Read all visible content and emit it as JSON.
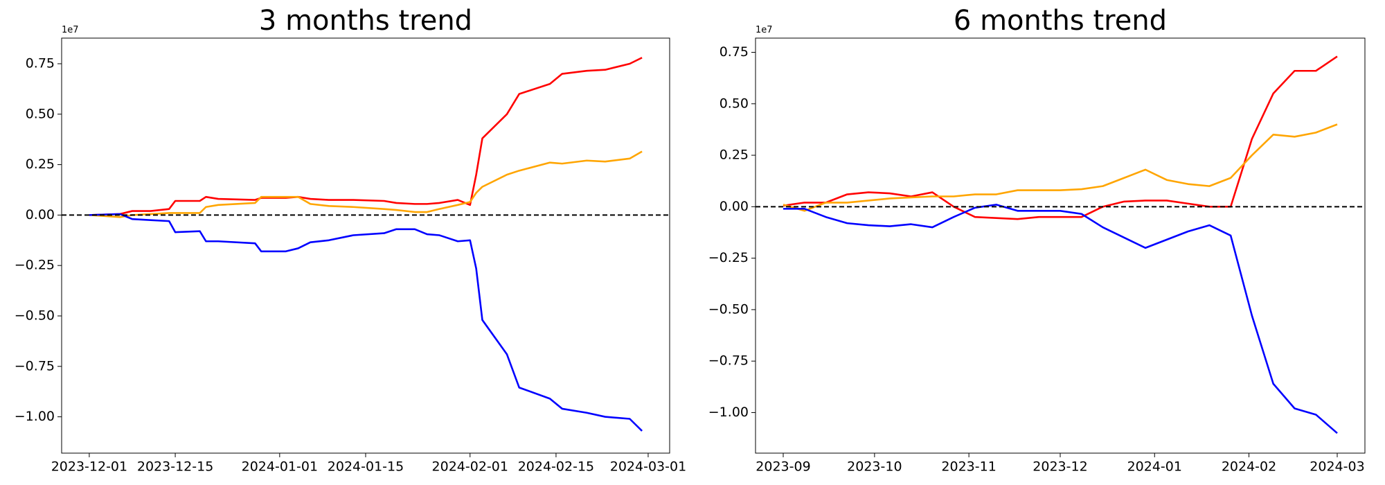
{
  "chart_data": [
    {
      "type": "line",
      "title": "3 months trend",
      "y_offset_label": "1e7",
      "x": [
        "2023-12-01",
        "2023-12-06",
        "2023-12-08",
        "2023-12-11",
        "2023-12-14",
        "2023-12-15",
        "2023-12-19",
        "2023-12-20",
        "2023-12-22",
        "2023-12-28",
        "2023-12-29",
        "2024-01-02",
        "2024-01-04",
        "2024-01-06",
        "2024-01-09",
        "2024-01-13",
        "2024-01-18",
        "2024-01-20",
        "2024-01-23",
        "2024-01-25",
        "2024-01-27",
        "2024-01-30",
        "2024-02-01",
        "2024-02-02",
        "2024-02-03",
        "2024-02-07",
        "2024-02-09",
        "2024-02-14",
        "2024-02-16",
        "2024-02-20",
        "2024-02-23",
        "2024-02-27",
        "2024-02-29"
      ],
      "series": [
        {
          "color": "#ff0000",
          "values": [
            0,
            0.005,
            0.02,
            0.02,
            0.03,
            0.07,
            0.07,
            0.09,
            0.08,
            0.075,
            0.085,
            0.085,
            0.09,
            0.08,
            0.075,
            0.075,
            0.07,
            0.06,
            0.055,
            0.055,
            0.06,
            0.075,
            0.05,
            0.2,
            0.38,
            0.5,
            0.6,
            0.65,
            0.7,
            0.715,
            0.72,
            0.75,
            0.78
          ]
        },
        {
          "color": "#ffa500",
          "values": [
            0,
            -0.01,
            0,
            0.005,
            0.01,
            0.01,
            0.01,
            0.04,
            0.05,
            0.06,
            0.09,
            0.09,
            0.09,
            0.055,
            0.045,
            0.04,
            0.03,
            0.025,
            0.015,
            0.015,
            0.03,
            0.05,
            0.065,
            0.11,
            0.14,
            0.2,
            0.22,
            0.26,
            0.255,
            0.27,
            0.265,
            0.28,
            0.315
          ]
        },
        {
          "color": "#0000ff",
          "values": [
            0,
            0.005,
            -0.02,
            -0.025,
            -0.03,
            -0.085,
            -0.08,
            -0.13,
            -0.13,
            -0.14,
            -0.18,
            -0.18,
            -0.165,
            -0.135,
            -0.125,
            -0.1,
            -0.09,
            -0.07,
            -0.07,
            -0.095,
            -0.1,
            -0.13,
            -0.125,
            -0.265,
            -0.52,
            -0.69,
            -0.855,
            -0.91,
            -0.96,
            -0.98,
            -1.0,
            -1.01,
            -1.07
          ]
        }
      ],
      "xticks": [
        "2023-12-01",
        "2023-12-15",
        "2024-01-01",
        "2024-01-15",
        "2024-02-01",
        "2024-02-15",
        "2024-03-01"
      ],
      "ylim": [
        -1.18,
        0.877
      ],
      "yticks": [
        {
          "value": -1,
          "label": "−1.00"
        },
        {
          "value": -0.75,
          "label": "−0.75"
        },
        {
          "value": -0.5,
          "label": "−0.50"
        },
        {
          "value": -0.25,
          "label": "−0.25"
        },
        {
          "value": 0,
          "label": "0.00"
        },
        {
          "value": 0.25,
          "label": "0.25"
        },
        {
          "value": 0.5,
          "label": "0.50"
        },
        {
          "value": 0.75,
          "label": "0.75"
        }
      ],
      "hline": 0
    },
    {
      "type": "line",
      "title": "6 months trend",
      "y_offset_label": "1e7",
      "xlim": [
        "2023-09",
        "2024-03"
      ],
      "series": [
        {
          "color": "#ff0000",
          "values": [
            0.005,
            0.02,
            0.02,
            0.06,
            0.07,
            0.065,
            0.05,
            0.07,
            0,
            -0.05,
            -0.055,
            -0.06,
            -0.05,
            -0.05,
            -0.05,
            0,
            0.025,
            0.03,
            0.03,
            0.015,
            0,
            0,
            0.33,
            0.55,
            0.66,
            0.66,
            0.73
          ]
        },
        {
          "color": "#ffa500",
          "values": [
            0.01,
            -0.02,
            0.02,
            0.02,
            0.03,
            0.04,
            0.045,
            0.05,
            0.05,
            0.06,
            0.06,
            0.08,
            0.08,
            0.08,
            0.085,
            0.1,
            0.14,
            0.18,
            0.13,
            0.11,
            0.1,
            0.14,
            0.25,
            0.35,
            0.34,
            0.36,
            0.4
          ]
        },
        {
          "color": "#0000ff",
          "values": [
            -0.01,
            -0.01,
            -0.05,
            -0.08,
            -0.09,
            -0.095,
            -0.085,
            -0.1,
            -0.05,
            -0.005,
            0.01,
            -0.02,
            -0.02,
            -0.02,
            -0.035,
            -0.1,
            -0.15,
            -0.2,
            -0.16,
            -0.12,
            -0.09,
            -0.14,
            -0.53,
            -0.86,
            -0.98,
            -1.01,
            -1.1
          ]
        }
      ],
      "xticks": [
        "2023-09",
        "2023-10",
        "2023-11",
        "2023-12",
        "2024-01",
        "2024-02",
        "2024-03"
      ],
      "ylim": [
        -1.197,
        0.819
      ],
      "yticks": [
        {
          "value": -1,
          "label": "−1.00"
        },
        {
          "value": -0.75,
          "label": "−0.75"
        },
        {
          "value": -0.5,
          "label": "−0.50"
        },
        {
          "value": -0.25,
          "label": "−0.25"
        },
        {
          "value": 0,
          "label": "0.00"
        },
        {
          "value": 0.25,
          "label": "0.25"
        },
        {
          "value": 0.5,
          "label": "0.50"
        },
        {
          "value": 0.75,
          "label": "0.75"
        }
      ],
      "hline": 0
    }
  ]
}
